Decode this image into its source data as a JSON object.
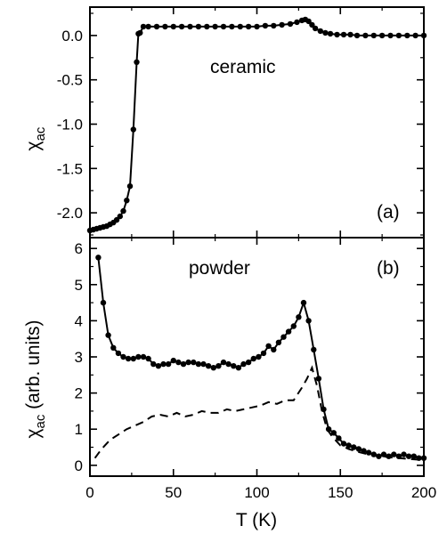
{
  "chart_data": [
    {
      "panel_label": "(a)",
      "type": "line",
      "annotation": "ceramic",
      "xlabel": "",
      "ylabel": "χac",
      "ylabel_main": "χ",
      "ylabel_sub": "ac",
      "xlim": [
        0,
        200
      ],
      "ylim": [
        -2.28,
        0.32
      ],
      "yticks": [
        -2.0,
        -1.5,
        -1.0,
        -0.5,
        0.0
      ],
      "ytick_labels": [
        "-2.0",
        "-1.5",
        "-1.0",
        "-0.5",
        "0.0"
      ],
      "xticks": [
        0,
        50,
        100,
        150,
        200
      ],
      "grid": false,
      "series": [
        {
          "style": "solid-with-markers",
          "color": "#000000",
          "points": [
            [
              0,
              -2.2
            ],
            [
              2,
              -2.19
            ],
            [
              4,
              -2.18
            ],
            [
              6,
              -2.17
            ],
            [
              8,
              -2.16
            ],
            [
              10,
              -2.15
            ],
            [
              12,
              -2.13
            ],
            [
              14,
              -2.11
            ],
            [
              16,
              -2.08
            ],
            [
              18,
              -2.04
            ],
            [
              20,
              -1.98
            ],
            [
              22,
              -1.86
            ],
            [
              24,
              -1.7
            ],
            [
              26,
              -1.06
            ],
            [
              28,
              -0.3
            ],
            [
              29,
              0.02
            ],
            [
              30,
              0.03
            ],
            [
              32,
              0.1
            ],
            [
              35,
              0.1
            ],
            [
              40,
              0.1
            ],
            [
              45,
              0.1
            ],
            [
              50,
              0.1
            ],
            [
              55,
              0.1
            ],
            [
              60,
              0.1
            ],
            [
              65,
              0.1
            ],
            [
              70,
              0.1
            ],
            [
              75,
              0.1
            ],
            [
              80,
              0.1
            ],
            [
              85,
              0.1
            ],
            [
              90,
              0.1
            ],
            [
              95,
              0.1
            ],
            [
              100,
              0.1
            ],
            [
              105,
              0.11
            ],
            [
              110,
              0.11
            ],
            [
              115,
              0.12
            ],
            [
              120,
              0.13
            ],
            [
              124,
              0.15
            ],
            [
              127,
              0.17
            ],
            [
              129,
              0.18
            ],
            [
              131,
              0.16
            ],
            [
              133,
              0.12
            ],
            [
              135,
              0.08
            ],
            [
              138,
              0.05
            ],
            [
              141,
              0.03
            ],
            [
              144,
              0.02
            ],
            [
              148,
              0.01
            ],
            [
              152,
              0.01
            ],
            [
              156,
              0.01
            ],
            [
              160,
              0.0
            ],
            [
              165,
              0.0
            ],
            [
              170,
              0.0
            ],
            [
              175,
              0.0
            ],
            [
              180,
              0.0
            ],
            [
              185,
              0.0
            ],
            [
              190,
              0.0
            ],
            [
              195,
              0.0
            ],
            [
              200,
              0.0
            ]
          ]
        }
      ]
    },
    {
      "panel_label": "(b)",
      "type": "line",
      "annotation": "powder",
      "xlabel": "T (K)",
      "ylabel": "χac (arb. units)",
      "ylabel_main": "χ",
      "ylabel_sub": "ac",
      "ylabel_rest": " (arb. units)",
      "xlim": [
        0,
        200
      ],
      "ylim": [
        -0.3,
        6.3
      ],
      "yticks": [
        0,
        1,
        2,
        3,
        4,
        5,
        6
      ],
      "ytick_labels": [
        "0",
        "1",
        "2",
        "3",
        "4",
        "5",
        "6"
      ],
      "xticks": [
        0,
        50,
        100,
        150,
        200
      ],
      "xtick_labels": [
        "0",
        "50",
        "100",
        "150",
        "200"
      ],
      "grid": false,
      "series": [
        {
          "style": "solid-with-markers",
          "color": "#000000",
          "points": [
            [
              5,
              5.75
            ],
            [
              8,
              4.5
            ],
            [
              11,
              3.6
            ],
            [
              14,
              3.25
            ],
            [
              17,
              3.1
            ],
            [
              20,
              3.0
            ],
            [
              23,
              2.95
            ],
            [
              26,
              2.95
            ],
            [
              29,
              3.0
            ],
            [
              32,
              3.0
            ],
            [
              35,
              2.95
            ],
            [
              38,
              2.8
            ],
            [
              41,
              2.75
            ],
            [
              44,
              2.8
            ],
            [
              47,
              2.8
            ],
            [
              50,
              2.9
            ],
            [
              53,
              2.85
            ],
            [
              56,
              2.8
            ],
            [
              59,
              2.85
            ],
            [
              62,
              2.85
            ],
            [
              65,
              2.8
            ],
            [
              68,
              2.8
            ],
            [
              71,
              2.75
            ],
            [
              74,
              2.7
            ],
            [
              77,
              2.75
            ],
            [
              80,
              2.85
            ],
            [
              83,
              2.8
            ],
            [
              86,
              2.75
            ],
            [
              89,
              2.7
            ],
            [
              92,
              2.8
            ],
            [
              95,
              2.85
            ],
            [
              98,
              2.95
            ],
            [
              101,
              3.0
            ],
            [
              104,
              3.1
            ],
            [
              107,
              3.3
            ],
            [
              110,
              3.2
            ],
            [
              113,
              3.4
            ],
            [
              116,
              3.55
            ],
            [
              119,
              3.7
            ],
            [
              122,
              3.85
            ],
            [
              125,
              4.1
            ],
            [
              128,
              4.5
            ],
            [
              131,
              4.0
            ],
            [
              134,
              3.2
            ],
            [
              137,
              2.4
            ],
            [
              140,
              1.55
            ],
            [
              143,
              1.0
            ],
            [
              146,
              0.9
            ],
            [
              149,
              0.75
            ],
            [
              152,
              0.6
            ],
            [
              155,
              0.55
            ],
            [
              158,
              0.5
            ],
            [
              161,
              0.45
            ],
            [
              164,
              0.4
            ],
            [
              167,
              0.35
            ],
            [
              170,
              0.3
            ],
            [
              173,
              0.25
            ],
            [
              176,
              0.3
            ],
            [
              179,
              0.25
            ],
            [
              182,
              0.3
            ],
            [
              185,
              0.25
            ],
            [
              188,
              0.3
            ],
            [
              191,
              0.25
            ],
            [
              194,
              0.25
            ],
            [
              197,
              0.2
            ],
            [
              200,
              0.2
            ]
          ]
        },
        {
          "style": "dashed",
          "color": "#000000",
          "points": [
            [
              3,
              0.2
            ],
            [
              7,
              0.45
            ],
            [
              12,
              0.7
            ],
            [
              17,
              0.85
            ],
            [
              22,
              1.0
            ],
            [
              27,
              1.1
            ],
            [
              32,
              1.2
            ],
            [
              37,
              1.35
            ],
            [
              42,
              1.4
            ],
            [
              47,
              1.35
            ],
            [
              52,
              1.45
            ],
            [
              57,
              1.35
            ],
            [
              62,
              1.4
            ],
            [
              67,
              1.5
            ],
            [
              72,
              1.45
            ],
            [
              77,
              1.45
            ],
            [
              82,
              1.55
            ],
            [
              87,
              1.5
            ],
            [
              92,
              1.55
            ],
            [
              97,
              1.6
            ],
            [
              102,
              1.65
            ],
            [
              107,
              1.75
            ],
            [
              112,
              1.7
            ],
            [
              117,
              1.8
            ],
            [
              122,
              1.8
            ],
            [
              127,
              2.15
            ],
            [
              130,
              2.4
            ],
            [
              133,
              2.7
            ],
            [
              136,
              2.2
            ],
            [
              139,
              1.5
            ],
            [
              142,
              1.0
            ],
            [
              145,
              0.8
            ],
            [
              150,
              0.55
            ],
            [
              155,
              0.45
            ],
            [
              160,
              0.38
            ],
            [
              165,
              0.32
            ],
            [
              170,
              0.27
            ],
            [
              175,
              0.25
            ],
            [
              180,
              0.22
            ],
            [
              185,
              0.2
            ],
            [
              190,
              0.18
            ],
            [
              195,
              0.16
            ],
            [
              200,
              0.15
            ]
          ]
        }
      ]
    }
  ]
}
